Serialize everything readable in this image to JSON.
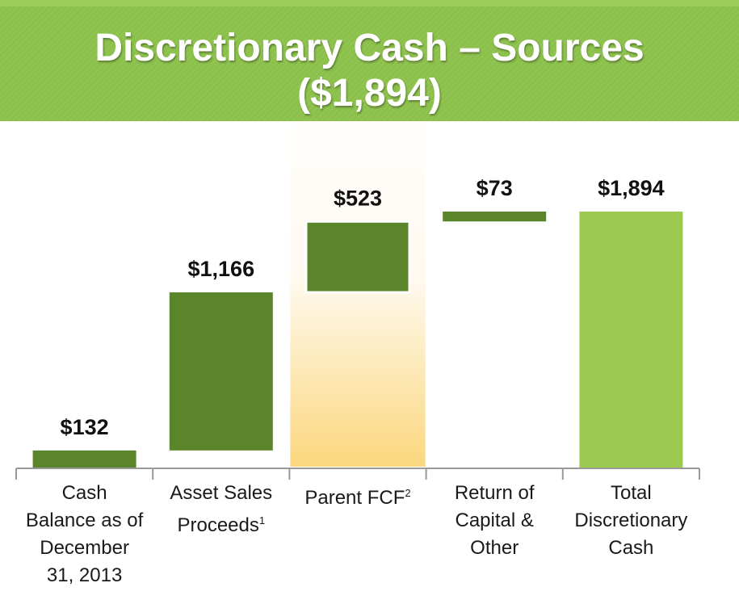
{
  "title": {
    "line1": "Discretionary Cash – Sources",
    "line2": "($1,894)"
  },
  "colors": {
    "banner": "#8bc04a",
    "dark_bar": "#5b852b",
    "light_bar": "#9cc94f",
    "highlight_top": "#fffaf0",
    "highlight_bottom": "#fbd77e",
    "axis": "#999999"
  },
  "chart_data": {
    "type": "bar",
    "subtype": "waterfall",
    "categories": [
      {
        "lines": [
          "Cash",
          "Balance as of",
          "December",
          "31, 2013"
        ],
        "footnote": ""
      },
      {
        "lines": [
          "Asset Sales",
          "Proceeds"
        ],
        "footnote": "1"
      },
      {
        "lines": [
          "Parent FCF"
        ],
        "footnote": "2"
      },
      {
        "lines": [
          "Return of",
          "Capital &",
          "Other"
        ],
        "footnote": ""
      },
      {
        "lines": [
          "Total",
          "Discretionary",
          "Cash"
        ],
        "footnote": ""
      }
    ],
    "values": [
      132,
      1166,
      523,
      73,
      1894
    ],
    "labels": [
      "$132",
      "$1,166",
      "$523",
      "$73",
      "$1,894"
    ],
    "highlighted_category": 2,
    "ylim": [
      0,
      1894
    ]
  }
}
